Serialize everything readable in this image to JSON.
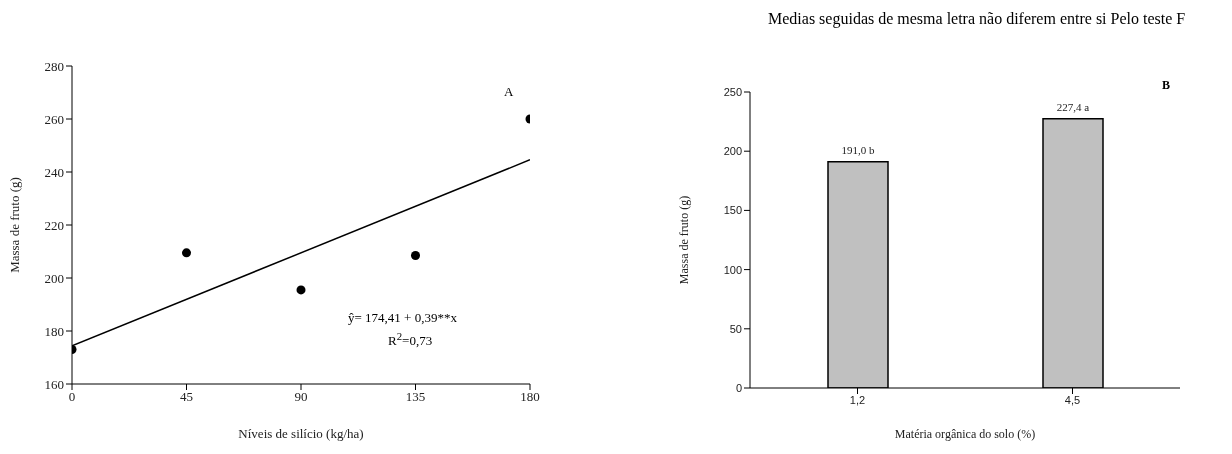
{
  "chart_data": [
    {
      "type": "scatter",
      "xlabel": "Níveis de silício (kg/ha)",
      "ylabel": "Massa de fruto (g)",
      "xlim": [
        0,
        180
      ],
      "xticks": [
        0,
        45,
        90,
        135,
        180
      ],
      "ylim": [
        160,
        280
      ],
      "yticks": [
        160,
        180,
        200,
        220,
        240,
        260,
        280
      ],
      "annotations": [
        "A",
        "ŷ= 174,41 + 0,39**x",
        "R$^{2}$=0,73"
      ],
      "series": [
        {
          "type": "scatter",
          "color": "#000000",
          "marker": "circle",
          "x": [
            0,
            45,
            90,
            135,
            180
          ],
          "values": [
            173,
            209.5,
            195.5,
            208.5,
            260
          ]
        },
        {
          "type": "line",
          "color": "#000000",
          "marker": "none",
          "x": [
            0,
            180
          ],
          "values": [
            174.4,
            244.6
          ]
        }
      ]
    },
    {
      "type": "bar",
      "xlabel": "Matéria orgânica do solo (%)",
      "ylabel": "Massa de fruto (g)",
      "categories": [
        "1,2",
        "4,5"
      ],
      "values": [
        191.0,
        227.4
      ],
      "color": "#c0c0c0",
      "value_labels": [
        "191,0 b",
        "227,4 a"
      ],
      "ylim": [
        0,
        250
      ],
      "yticks": [
        0,
        50,
        100,
        150,
        200,
        250
      ],
      "annotations": [
        "Medias seguidas de mesma letra não diferem entre si Pelo teste F",
        "B"
      ]
    }
  ]
}
